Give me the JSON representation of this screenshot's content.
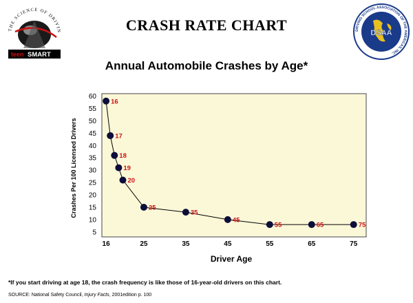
{
  "header": {
    "page_title": "CRASH RATE CHART",
    "left_logo": {
      "arc_text": "THE SCIENCE OF DRIVING",
      "brand_prefix": "teen",
      "brand_name": "SMART",
      "icon": "teen-smart-logo-icon"
    },
    "right_logo": {
      "arc_text": "DRIVING SCHOOL ASSOCIATION OF THE AMERICAS, INC.",
      "center_text": "DSAA",
      "icon": "dsaa-globe-seal-icon"
    }
  },
  "colors": {
    "plot_background": "#fbf8d8",
    "point_fill": "#0d0d3a",
    "point_label": "#cc1111",
    "line": "#000000"
  },
  "chart_data": {
    "type": "line",
    "title": "Annual Automobile Crashes by Age*",
    "xlabel": "Driver Age",
    "ylabel": "Crashes Per 100 Licensed Drivers",
    "x_ticks": [
      16,
      25,
      35,
      45,
      55,
      65,
      75
    ],
    "y_ticks": [
      5,
      10,
      15,
      20,
      25,
      30,
      35,
      40,
      45,
      50,
      55,
      60
    ],
    "xlim": [
      15,
      78
    ],
    "ylim": [
      3,
      61
    ],
    "grid": false,
    "legend": "none",
    "series": [
      {
        "x": [
          16,
          17,
          18,
          19,
          20,
          25,
          35,
          45,
          55,
          65,
          75
        ],
        "y": [
          58,
          44,
          36,
          31,
          26,
          15,
          13,
          10,
          8,
          8,
          8
        ],
        "point_labels": [
          "16",
          "17",
          "18",
          "19",
          "20",
          "25",
          "35",
          "45",
          "55",
          "65",
          "75"
        ]
      }
    ]
  },
  "footnote": "*If you start driving at age 18, the crash frequency is like those of 16-year-old drivers on this chart.",
  "source": {
    "prefix": "SOURCE: National Safety Council, ",
    "publication": "Injury Facts",
    "suffix": ", 2001edition p. 100"
  }
}
